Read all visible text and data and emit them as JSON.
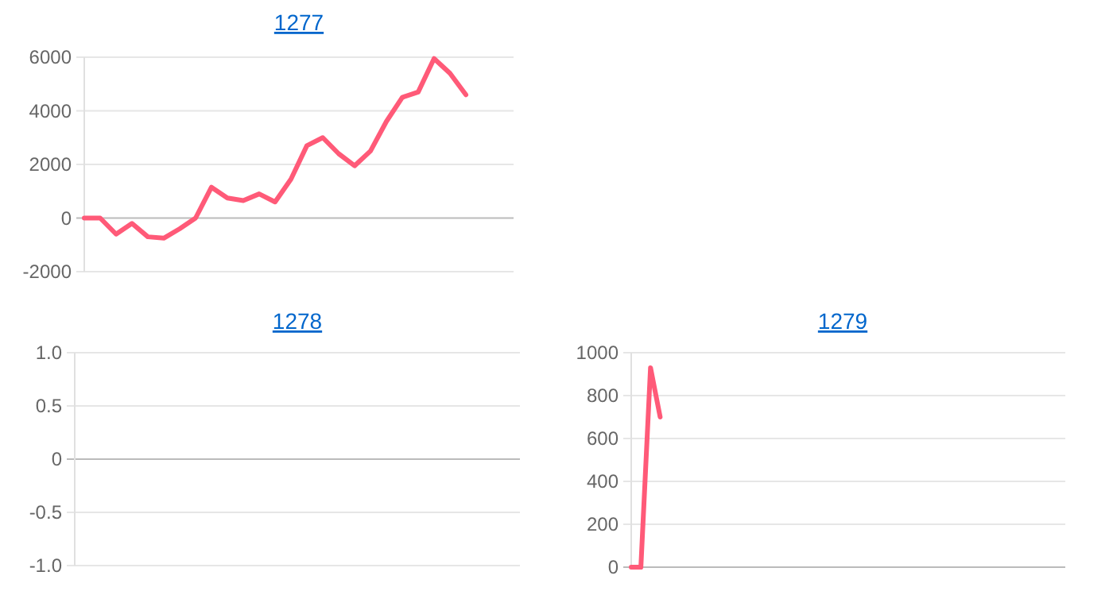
{
  "chart_data": [
    {
      "type": "line",
      "title": "1277",
      "categories": [
        null,
        null,
        null,
        null,
        null,
        null,
        null,
        null,
        null,
        null,
        null,
        null,
        null,
        null,
        null,
        null,
        null,
        null,
        null,
        null,
        null,
        null,
        null,
        null,
        null,
        null,
        null,
        null
      ],
      "series": [
        {
          "color": "#ff5a78",
          "values": [
            0,
            0,
            -600,
            -200,
            -700,
            -750,
            -400,
            0,
            1150,
            750,
            650,
            900,
            600,
            1450,
            2700,
            3000,
            2400,
            1950,
            2500,
            3600,
            4500,
            4700,
            5950,
            5400,
            4600,
            null,
            null,
            null
          ]
        }
      ],
      "ylim": [
        -2000,
        6000
      ],
      "yticks": [
        -2000,
        0,
        2000,
        4000,
        6000
      ],
      "grid": "y",
      "tick_labels": "y",
      "marker": "none"
    },
    {
      "type": "line",
      "title": "1278",
      "categories": [
        null,
        null
      ],
      "series": [
        {
          "color": "#ff5a78",
          "values": [
            null,
            null
          ]
        }
      ],
      "ylim": [
        -1,
        1
      ],
      "yticks": [
        {
          "value": -1,
          "label": "-1.0"
        },
        {
          "value": -0.5,
          "label": "-0.5"
        },
        {
          "value": 0,
          "label": "0"
        },
        {
          "value": 0.5,
          "label": "0.5"
        },
        {
          "value": 1,
          "label": "1.0"
        }
      ],
      "grid": "y",
      "tick_labels": "y",
      "marker": "none"
    },
    {
      "type": "line",
      "title": "1279",
      "categories": [
        null,
        null,
        null,
        null,
        null,
        null,
        null,
        null,
        null,
        null,
        null,
        null,
        null,
        null,
        null,
        null,
        null,
        null,
        null,
        null,
        null,
        null,
        null,
        null,
        null,
        null,
        null,
        null,
        null,
        null,
        null,
        null,
        null,
        null,
        null,
        null,
        null,
        null,
        null,
        null,
        null,
        null,
        null,
        null,
        null,
        null
      ],
      "series": [
        {
          "color": "#ff5a78",
          "values": [
            0,
            0,
            930,
            700,
            null,
            null,
            null,
            null,
            null,
            null,
            null,
            null,
            null,
            null,
            null,
            null,
            null,
            null,
            null,
            null,
            null,
            null,
            null,
            null,
            null,
            null,
            null,
            null,
            null,
            null,
            null,
            null,
            null,
            null,
            null,
            null,
            null,
            null,
            null,
            null,
            null,
            null,
            null,
            null,
            null,
            null
          ]
        }
      ],
      "ylim": [
        0,
        1000
      ],
      "yticks": [
        0,
        200,
        400,
        600,
        800,
        1000
      ],
      "grid": "y",
      "tick_labels": "y",
      "marker": "none"
    }
  ]
}
